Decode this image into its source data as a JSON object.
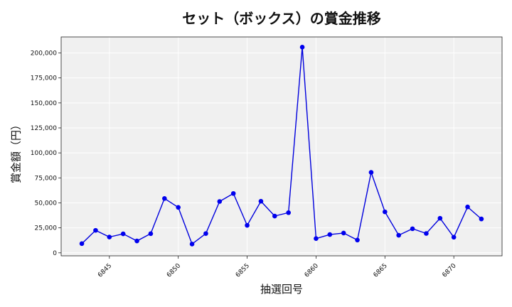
{
  "chart_data": {
    "type": "line",
    "title": "セット（ボックス）の賞金推移",
    "xlabel": "抽選回号",
    "ylabel": "賞金額（円）",
    "x": [
      6843,
      6844,
      6845,
      6846,
      6847,
      6848,
      6849,
      6850,
      6851,
      6852,
      6853,
      6854,
      6855,
      6856,
      6857,
      6858,
      6859,
      6860,
      6861,
      6862,
      6863,
      6864,
      6865,
      6866,
      6867,
      6868,
      6869,
      6870,
      6871,
      6872
    ],
    "series": [
      {
        "values": [
          9200,
          22500,
          15800,
          19000,
          11900,
          19200,
          54400,
          45500,
          8800,
          19300,
          51400,
          59400,
          27500,
          51600,
          36800,
          40200,
          205800,
          14300,
          18300,
          19800,
          12800,
          80500,
          41000,
          17600,
          24100,
          19400,
          34600,
          15600,
          45900,
          33900
        ]
      }
    ],
    "xticks": [
      6845,
      6850,
      6855,
      6860,
      6865,
      6870
    ],
    "yticks": [
      0,
      25000,
      50000,
      75000,
      100000,
      125000,
      150000,
      175000,
      200000
    ],
    "xlim": [
      6841.5,
      6873.5
    ],
    "ylim": [
      -3000,
      216000
    ],
    "grid": true,
    "colors": {
      "line": "#0000dd",
      "marker": "#0000ee",
      "plot_bg": "#f0f0f0",
      "grid": "#ffffff"
    }
  }
}
